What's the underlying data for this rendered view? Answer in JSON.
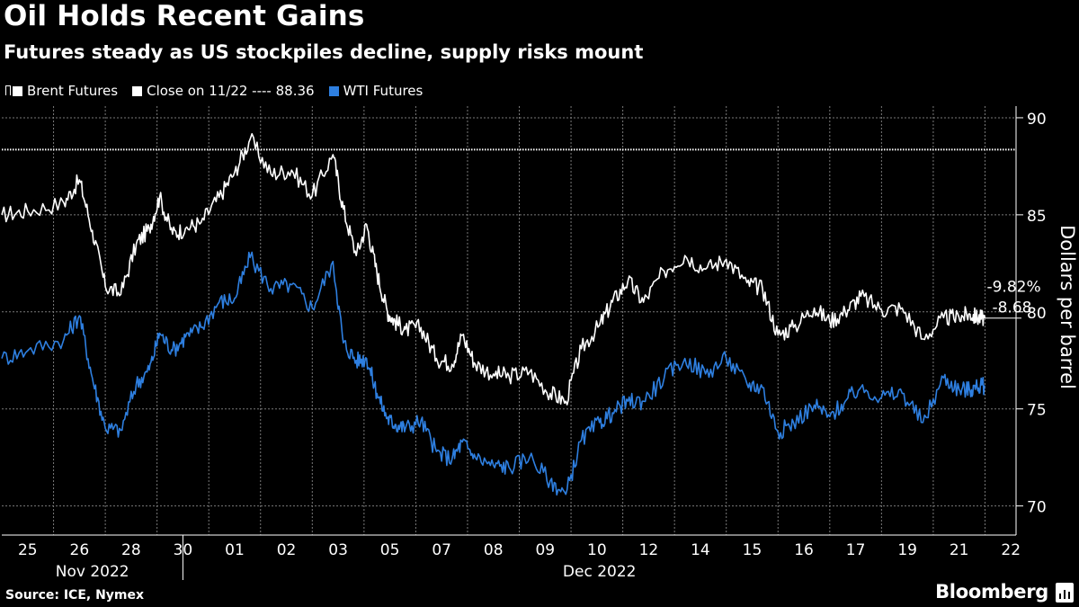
{
  "header": {
    "title": "Oil Holds Recent Gains",
    "subtitle": "Futures steady as US stockpiles decline, supply risks mount"
  },
  "legend": {
    "brent_label": "Brent Futures",
    "close_label": "Close on 11/22 ---- 88.36",
    "wti_label": "WTI Futures"
  },
  "footer": {
    "source": "Source: ICE, Nymex",
    "brand": "Bloomberg"
  },
  "colors": {
    "brent": "#ffffff",
    "wti": "#2e7fe0",
    "grid": "#7a7a7a",
    "background": "#000000"
  },
  "chart_data": {
    "type": "line",
    "title": "Oil Holds Recent Gains",
    "ylabel": "Dollars per barrel",
    "ylim": [
      68.5,
      90.6
    ],
    "yticks": [
      70,
      75,
      80,
      85,
      90
    ],
    "xlim": [
      0,
      19.6
    ],
    "x_tick_labels": [
      "25",
      "26",
      "28",
      "30",
      "01",
      "02",
      "03",
      "05",
      "07",
      "08",
      "09",
      "10",
      "12",
      "14",
      "15",
      "16",
      "17",
      "19",
      "21",
      "22"
    ],
    "month_labels": [
      {
        "label": "Nov 2022",
        "from": 0,
        "to": 3.5
      },
      {
        "label": "Dec 2022",
        "from": 3.5,
        "to": 19.6
      }
    ],
    "reference_line": {
      "label": "Close on 11/22",
      "value": 88.36
    },
    "annotations": {
      "pct_change": "-9.82%",
      "abs_change": "-8.68",
      "last_brent": 79.68
    },
    "series": [
      {
        "name": "Brent Futures",
        "x": [
          0,
          0.5,
          1.2,
          1.5,
          1.75,
          2,
          2.3,
          2.6,
          2.85,
          3.05,
          3.3,
          3.55,
          3.85,
          4.2,
          4.5,
          4.8,
          5.2,
          5.6,
          6.0,
          6.4,
          6.6,
          6.85,
          7.05,
          7.25,
          7.45,
          7.6,
          7.8,
          8.1,
          8.4,
          8.7,
          8.9,
          9.15,
          9.5,
          9.8,
          10.2,
          10.6,
          10.9,
          11.2,
          11.55,
          11.8,
          12.1,
          12.4,
          12.8,
          13.2,
          13.6,
          14.0,
          14.4,
          14.7,
          15.0,
          15.3,
          15.7,
          16.0,
          16.3,
          16.6,
          17.0,
          17.4,
          17.8,
          18.2,
          18.5,
          18.7,
          18.85,
          19.0
        ],
        "values": [
          85.0,
          85.2,
          85.6,
          86.8,
          84.2,
          81.3,
          80.9,
          83.5,
          84.3,
          85.9,
          84.0,
          84.3,
          84.6,
          85.9,
          87.2,
          88.9,
          87.1,
          87.3,
          86.0,
          88.1,
          85.3,
          82.9,
          84.5,
          82.0,
          80.0,
          79.5,
          79.1,
          79.2,
          77.6,
          77.3,
          78.8,
          77.3,
          76.8,
          76.7,
          76.9,
          75.8,
          75.4,
          78.1,
          79.3,
          80.5,
          81.6,
          80.5,
          82.1,
          82.9,
          82.2,
          82.7,
          81.5,
          81.2,
          78.8,
          79.2,
          80.2,
          79.5,
          80.0,
          80.8,
          80.1,
          80.2,
          78.6,
          79.7,
          79.7,
          79.9,
          79.7,
          79.68
        ]
      },
      {
        "name": "WTI Futures",
        "x": [
          0,
          0.5,
          1.2,
          1.5,
          1.75,
          2,
          2.3,
          2.6,
          2.85,
          3.05,
          3.3,
          3.55,
          3.85,
          4.2,
          4.5,
          4.8,
          5.2,
          5.6,
          6.0,
          6.4,
          6.6,
          6.85,
          7.05,
          7.25,
          7.45,
          7.6,
          7.8,
          8.1,
          8.4,
          8.7,
          8.9,
          9.15,
          9.5,
          9.8,
          10.2,
          10.6,
          10.9,
          11.2,
          11.55,
          11.8,
          12.1,
          12.4,
          12.8,
          13.2,
          13.6,
          14.0,
          14.4,
          14.7,
          15.0,
          15.3,
          15.7,
          16.0,
          16.3,
          16.6,
          17.0,
          17.4,
          17.8,
          18.2,
          18.5,
          18.7,
          18.85,
          19.0
        ],
        "values": [
          77.6,
          78.0,
          78.6,
          79.8,
          76.6,
          74.0,
          73.9,
          76.3,
          77.0,
          78.9,
          78.0,
          78.7,
          79.2,
          80.5,
          80.7,
          82.8,
          81.2,
          81.4,
          80.2,
          82.6,
          78.4,
          77.5,
          77.6,
          75.8,
          74.5,
          74.2,
          74.0,
          74.4,
          72.8,
          72.4,
          73.3,
          72.5,
          72.1,
          72.0,
          72.5,
          71.3,
          70.6,
          73.4,
          74.3,
          74.8,
          75.4,
          75.4,
          76.6,
          77.6,
          76.8,
          77.6,
          76.3,
          76.1,
          73.8,
          74.3,
          75.2,
          74.6,
          75.4,
          76.1,
          75.6,
          75.8,
          74.3,
          76.6,
          76.0,
          76.0,
          76.1,
          76.2
        ]
      }
    ]
  }
}
